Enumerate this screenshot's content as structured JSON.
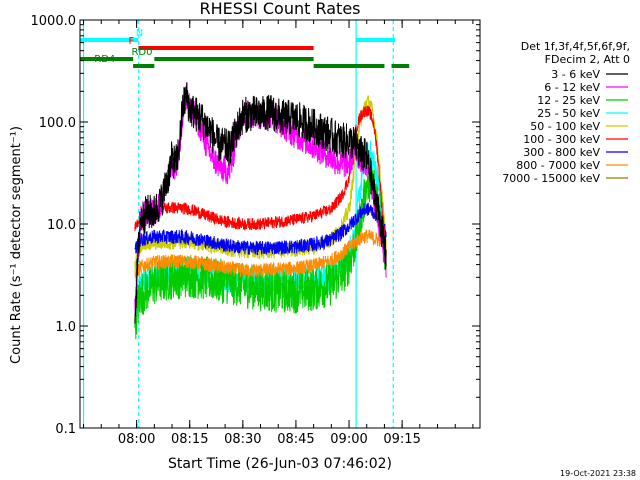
{
  "chart_data": {
    "type": "line",
    "title": "RHESSI Count Rates",
    "xlabel": "Start Time (26-Jun-03 07:46:02)",
    "ylabel": "Count Rate (s⁻¹ detector segment⁻¹)",
    "yscale": "log",
    "ylim": [
      0.1,
      1000
    ],
    "xlim_minutes": [
      -16,
      97
    ],
    "x_unit": "minutes after 08:00 UT",
    "y_ticks": [
      {
        "value": 0.1,
        "label": "0.1"
      },
      {
        "value": 1,
        "label": "1.0"
      },
      {
        "value": 10,
        "label": "10.0"
      },
      {
        "value": 100,
        "label": "100.0"
      },
      {
        "value": 1000,
        "label": "1000.0"
      }
    ],
    "x_ticks": [
      {
        "value": 0,
        "label": "08:00"
      },
      {
        "value": 15,
        "label": "08:15"
      },
      {
        "value": 30,
        "label": "08:30"
      },
      {
        "value": 45,
        "label": "08:45"
      },
      {
        "value": 60,
        "label": "09:00"
      },
      {
        "value": 75,
        "label": "09:15"
      }
    ],
    "legend_header": [
      "Det 1f,3f,4f,5f,6f,9f,",
      "FDecim 2, Att 0"
    ],
    "legend_position": "right, outside plot",
    "series": [
      {
        "name": "3 - 6 keV",
        "color": "#000000",
        "noise": 0.18,
        "x": [
          -0.5,
          1,
          3,
          5,
          7,
          9,
          10,
          11,
          12,
          13,
          14,
          15,
          18,
          21,
          23,
          25,
          26,
          27,
          28,
          30,
          32,
          35,
          38,
          41,
          44,
          47,
          50,
          53,
          56,
          58,
          60,
          62,
          63,
          65,
          66,
          67,
          68,
          69,
          70,
          70.5
        ],
        "y": [
          1.3,
          11,
          13,
          13,
          17,
          30,
          45,
          38,
          55,
          140,
          180,
          135,
          110,
          80,
          60,
          58,
          55,
          62,
          80,
          115,
          122,
          118,
          125,
          110,
          110,
          100,
          90,
          80,
          70,
          65,
          65,
          60,
          50,
          45,
          32,
          20,
          15,
          10,
          6,
          4.5
        ]
      },
      {
        "name": "6 - 12 keV",
        "color": "#ff00ff",
        "noise": 0.14,
        "x": [
          -0.5,
          1,
          3,
          5,
          7,
          9,
          10,
          11,
          12,
          13,
          14,
          15,
          18,
          20,
          22,
          24,
          26,
          27,
          28,
          30,
          32,
          35,
          38,
          41,
          44,
          47,
          50,
          53,
          56,
          58,
          60,
          62,
          63,
          65,
          66,
          67,
          68,
          69,
          70,
          70.5
        ],
        "y": [
          1.4,
          11,
          13,
          13,
          16,
          28,
          40,
          35,
          50,
          120,
          190,
          140,
          90,
          55,
          42,
          35,
          33,
          40,
          70,
          110,
          120,
          115,
          118,
          95,
          78,
          68,
          58,
          50,
          42,
          38,
          40,
          50,
          45,
          40,
          30,
          18,
          12,
          8,
          5,
          3.8
        ]
      },
      {
        "name": "12 - 25 keV",
        "color": "#00cc00",
        "noise": 0.22,
        "x": [
          -0.5,
          1,
          5,
          10,
          15,
          20,
          25,
          30,
          35,
          40,
          45,
          50,
          55,
          58,
          60,
          62,
          63,
          64,
          65,
          66,
          67,
          68,
          69,
          70,
          70.5
        ],
        "y": [
          1.1,
          2.0,
          2.6,
          3.0,
          3.1,
          2.9,
          2.7,
          2.5,
          2.3,
          2.2,
          2.2,
          2.3,
          2.6,
          3.3,
          4.2,
          7,
          10,
          15,
          24,
          28,
          24,
          18,
          12,
          6,
          4
        ]
      },
      {
        "name": "25 - 50 keV",
        "color": "#00ffff",
        "noise": 0.15,
        "x": [
          -0.5,
          1,
          5,
          10,
          15,
          20,
          25,
          30,
          35,
          40,
          45,
          50,
          55,
          58,
          60,
          62,
          63,
          64,
          65,
          66,
          67,
          68,
          69,
          70,
          70.5
        ],
        "y": [
          1.6,
          2.6,
          3.0,
          3.4,
          3.5,
          3.3,
          3.0,
          2.9,
          2.8,
          2.8,
          2.8,
          2.9,
          3.2,
          4.0,
          5.2,
          10,
          20,
          35,
          45,
          48,
          40,
          28,
          16,
          8,
          5
        ]
      },
      {
        "name": "50 - 100 keV",
        "color": "#cccc00",
        "noise": 0.08,
        "x": [
          -0.5,
          1,
          5,
          10,
          15,
          20,
          25,
          30,
          35,
          40,
          45,
          50,
          55,
          58,
          60,
          61,
          62,
          63,
          64,
          65,
          66,
          67,
          68,
          69,
          70,
          70.5
        ],
        "y": [
          3.8,
          6.2,
          6.6,
          6.7,
          6.8,
          6.3,
          5.8,
          5.5,
          5.4,
          5.5,
          5.7,
          6.0,
          7.0,
          9.5,
          14,
          25,
          55,
          95,
          130,
          160,
          150,
          110,
          60,
          25,
          10,
          5
        ]
      },
      {
        "name": "100 - 300 keV",
        "color": "#ff0000",
        "noise": 0.06,
        "x": [
          -0.5,
          1,
          5,
          10,
          15,
          20,
          25,
          30,
          35,
          40,
          45,
          50,
          55,
          58,
          60,
          61,
          62,
          63,
          64,
          65,
          66,
          67,
          68,
          69,
          70,
          70.5
        ],
        "y": [
          9,
          12,
          14,
          14.5,
          14,
          12,
          10.5,
          10,
          10,
          10.5,
          11,
          12,
          14,
          19,
          28,
          50,
          85,
          110,
          125,
          130,
          120,
          95,
          50,
          20,
          8,
          4
        ]
      },
      {
        "name": "300 - 800 keV",
        "color": "#0000ff",
        "noise": 0.07,
        "x": [
          -0.5,
          1,
          5,
          10,
          15,
          20,
          25,
          30,
          35,
          40,
          45,
          50,
          55,
          58,
          60,
          62,
          63,
          64,
          65,
          66,
          67,
          68,
          69,
          70,
          70.5
        ],
        "y": [
          5.5,
          7,
          7.5,
          7.5,
          7.4,
          6.8,
          6.2,
          5.9,
          5.8,
          5.9,
          6.0,
          6.3,
          7.0,
          8.3,
          9.5,
          11.5,
          12.5,
          13.5,
          14,
          13.8,
          13,
          12,
          10,
          9,
          8
        ]
      },
      {
        "name": "800 - 7000 keV",
        "color": "#ff8c00",
        "noise": 0.07,
        "x": [
          -0.5,
          1,
          5,
          10,
          15,
          20,
          25,
          30,
          35,
          40,
          45,
          50,
          55,
          58,
          60,
          62,
          63,
          64,
          65,
          66,
          67,
          68,
          69,
          70,
          70.5
        ],
        "y": [
          3,
          3.8,
          4.2,
          4.3,
          4.3,
          4.0,
          3.7,
          3.5,
          3.5,
          3.6,
          3.7,
          3.9,
          4.4,
          5.2,
          5.9,
          6.8,
          7.2,
          7.5,
          7.6,
          7.5,
          7.2,
          7.0,
          7.0,
          7.0,
          7.0
        ]
      },
      {
        "name": "7000 - 15000 keV",
        "color": "#a07800",
        "noise": 0.0,
        "x": [],
        "y": []
      }
    ],
    "attenuator_bars": [
      {
        "label": "N",
        "color": "#00ffff",
        "label_x": 0.8,
        "level": "top",
        "segments": [
          [
            -16,
            0.5
          ],
          [
            62,
            73
          ]
        ]
      },
      {
        "label": "F",
        "color": "#ff0000",
        "label_x": -1.5,
        "level": "mid",
        "segments": [
          [
            0.5,
            50
          ]
        ]
      },
      {
        "label": "RD0",
        "color": "#008000",
        "label_x": 1.5,
        "level": "mid",
        "segments": [
          [
            -16,
            -1
          ],
          [
            5,
            50
          ]
        ]
      },
      {
        "label": "RD4",
        "color": "#008000",
        "label_x": -9,
        "level": "low",
        "segments": [
          [
            -1,
            5
          ],
          [
            50,
            70
          ],
          [
            72,
            77
          ]
        ]
      }
    ],
    "vertical_markers": [
      {
        "x": 0.6,
        "color": "#00ffff",
        "style": "dashed"
      },
      {
        "x": 62,
        "color": "#00ffff",
        "style": "solid"
      },
      {
        "x": 72.5,
        "color": "#00ffff",
        "style": "dashed"
      },
      {
        "x": -15,
        "color": "#00ffff",
        "style": "solid"
      }
    ]
  },
  "footer": {
    "timestamp": "19-Oct-2021 23:38"
  }
}
